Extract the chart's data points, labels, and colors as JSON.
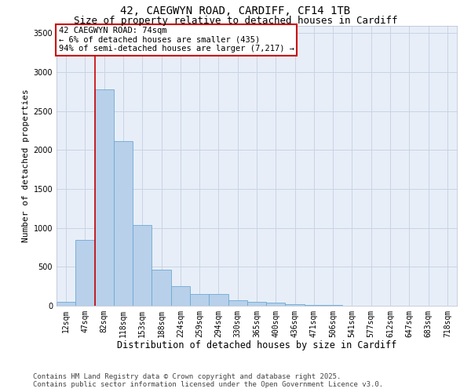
{
  "title1": "42, CAEGWYN ROAD, CARDIFF, CF14 1TB",
  "title2": "Size of property relative to detached houses in Cardiff",
  "xlabel": "Distribution of detached houses by size in Cardiff",
  "ylabel": "Number of detached properties",
  "categories": [
    "12sqm",
    "47sqm",
    "82sqm",
    "118sqm",
    "153sqm",
    "188sqm",
    "224sqm",
    "259sqm",
    "294sqm",
    "330sqm",
    "365sqm",
    "400sqm",
    "436sqm",
    "471sqm",
    "506sqm",
    "541sqm",
    "577sqm",
    "612sqm",
    "647sqm",
    "683sqm",
    "718sqm"
  ],
  "values": [
    55,
    850,
    2780,
    2110,
    1040,
    460,
    250,
    155,
    155,
    75,
    55,
    40,
    20,
    15,
    10,
    5,
    3,
    2,
    1,
    1,
    0
  ],
  "bar_color": "#b8d0ea",
  "bar_edgecolor": "#6aaad4",
  "vline_x_index": 1,
  "annotation_line1": "42 CAEGWYN ROAD: 74sqm",
  "annotation_line2": "← 6% of detached houses are smaller (435)",
  "annotation_line3": "94% of semi-detached houses are larger (7,217) →",
  "annotation_box_edgecolor": "#cc0000",
  "vline_color": "#cc0000",
  "ylim": [
    0,
    3600
  ],
  "yticks": [
    0,
    500,
    1000,
    1500,
    2000,
    2500,
    3000,
    3500
  ],
  "grid_color": "#c8d4e4",
  "bg_color": "#e8eef8",
  "footer1": "Contains HM Land Registry data © Crown copyright and database right 2025.",
  "footer2": "Contains public sector information licensed under the Open Government Licence v3.0.",
  "title1_fontsize": 10,
  "title2_fontsize": 9,
  "xlabel_fontsize": 8.5,
  "ylabel_fontsize": 8,
  "tick_fontsize": 7,
  "annot_fontsize": 7.5,
  "footer_fontsize": 6.5
}
